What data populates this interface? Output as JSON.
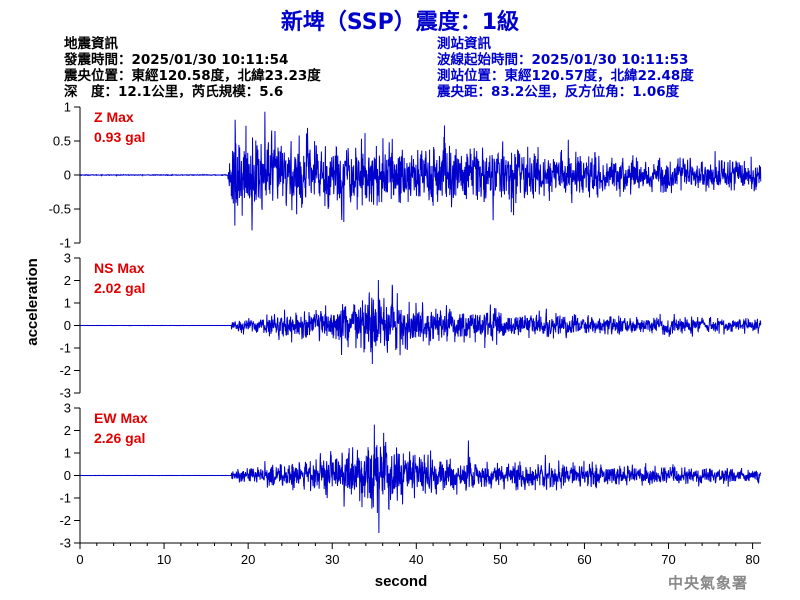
{
  "title": "新埤（SSP）震度：1級",
  "event_info": {
    "heading": "地震資訊",
    "origin_time": "發震時間：2025/01/30 10:11:54",
    "epicenter": "震央位置：東經120.58度，北緯23.23度",
    "depth_magnitude": "深　度：12.1公里，芮氏規模：5.6"
  },
  "station_info": {
    "heading": "測站資訊",
    "wave_start": "波線起始時間：2025/01/30 10:11:53",
    "station_location": "測站位置：東經120.57度，北緯22.48度",
    "distance_azimuth": "震央距：83.2公里，反方位角：1.06度"
  },
  "footer": "中央氣象署",
  "colors": {
    "trace": "#0000cc",
    "max_label": "#e00000",
    "title": "#0000cc"
  },
  "chart_data": {
    "type": "line",
    "xlabel": "second",
    "ylabel": "acceleration",
    "xlim": [
      0,
      81
    ],
    "x_ticks": [
      0,
      10,
      20,
      30,
      40,
      50,
      60,
      70,
      80
    ],
    "x_tick_labels": [
      "0",
      "10",
      "20",
      "30",
      "40",
      "50",
      "60",
      "70",
      "80"
    ],
    "grid": false,
    "panels": [
      {
        "component": "Z",
        "max_title": "Z Max",
        "max_value": "0.93 gal",
        "peak": 0.93,
        "ylim": [
          -1,
          1
        ],
        "y_ticks": [
          -1,
          -0.5,
          0,
          0.5,
          1
        ],
        "y_tick_labels": [
          "-1",
          "-0.5",
          "0",
          "0.5",
          "1"
        ],
        "onset_s": 17.6,
        "peak_time_s": 22,
        "strong_phase_s": [
          18,
          40
        ],
        "end_s": 81
      },
      {
        "component": "NS",
        "max_title": "NS Max",
        "max_value": "2.02 gal",
        "peak": 2.02,
        "ylim": [
          -3,
          3
        ],
        "y_ticks": [
          -3,
          -2,
          -1,
          0,
          1,
          2,
          3
        ],
        "y_tick_labels": [
          "-3",
          "-2",
          "-1",
          "0",
          "1",
          "2",
          "3"
        ],
        "onset_s": 18,
        "peak_time_s": 35.5,
        "strong_phase_s": [
          30,
          42
        ],
        "end_s": 81
      },
      {
        "component": "EW",
        "max_title": "EW Max",
        "max_value": "2.26 gal",
        "peak": 2.26,
        "ylim": [
          -3,
          3
        ],
        "y_ticks": [
          -3,
          -2,
          -1,
          0,
          1,
          2,
          3
        ],
        "y_tick_labels": [
          "-3",
          "-2",
          "-1",
          "0",
          "1",
          "2",
          "3"
        ],
        "onset_s": 18,
        "peak_time_s": 35,
        "strong_phase_s": [
          30,
          40
        ],
        "end_s": 81
      }
    ]
  }
}
